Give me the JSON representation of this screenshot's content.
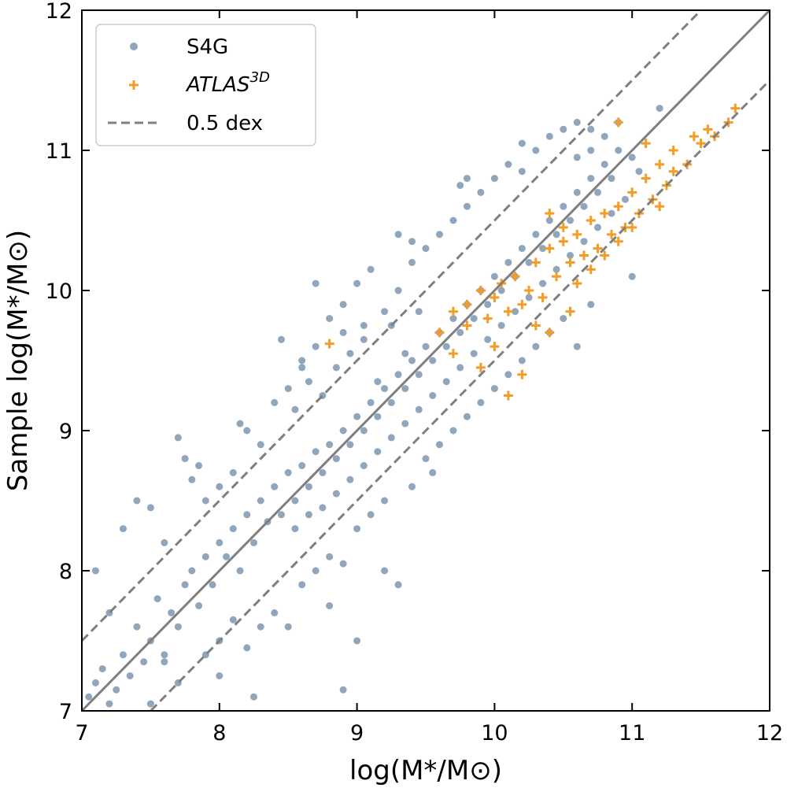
{
  "chart_data": {
    "type": "scatter",
    "xlabel": "log(M*/M⊙)",
    "ylabel": "Sample log(M*/M⊙)",
    "xlim": [
      7,
      12
    ],
    "ylim": [
      7,
      12
    ],
    "x_ticks": [
      "7",
      "8",
      "9",
      "10",
      "11",
      "12"
    ],
    "y_ticks": [
      "7",
      "8",
      "9",
      "10",
      "11",
      "12"
    ],
    "ticks_direction": "in",
    "grid": false,
    "legend_position": "top-left",
    "legend": {
      "s4g_label": "S4G",
      "atlas_label_base": "ATLAS",
      "atlas_label_sup": "3D",
      "dex_label": "0.5 dex"
    },
    "reference_lines": [
      {
        "name": "one-to-one",
        "style": "solid",
        "slope": 1,
        "offset": 0,
        "color": "#7f7f7f"
      },
      {
        "name": "plus-0.5-dex",
        "style": "dashed",
        "slope": 1,
        "offset": 0.5,
        "color": "#7f7f7f"
      },
      {
        "name": "minus-0.5-dex",
        "style": "dashed",
        "slope": 1,
        "offset": -0.5,
        "color": "#7f7f7f"
      }
    ],
    "series": [
      {
        "name": "S4G",
        "marker": "circle",
        "color": "#1f4e79",
        "points": [
          [
            7.05,
            7.1
          ],
          [
            7.1,
            7.2
          ],
          [
            7.15,
            7.3
          ],
          [
            7.2,
            7.05
          ],
          [
            7.25,
            7.15
          ],
          [
            7.3,
            7.4
          ],
          [
            7.35,
            7.25
          ],
          [
            7.4,
            7.6
          ],
          [
            7.45,
            7.35
          ],
          [
            7.5,
            7.5
          ],
          [
            7.55,
            7.8
          ],
          [
            7.6,
            7.4
          ],
          [
            7.65,
            7.7
          ],
          [
            7.7,
            7.6
          ],
          [
            7.75,
            7.9
          ],
          [
            7.8,
            8.0
          ],
          [
            7.85,
            7.75
          ],
          [
            7.9,
            8.1
          ],
          [
            7.95,
            7.9
          ],
          [
            8.0,
            8.2
          ],
          [
            8.05,
            8.1
          ],
          [
            8.1,
            8.3
          ],
          [
            8.15,
            8.0
          ],
          [
            8.2,
            8.4
          ],
          [
            8.25,
            8.2
          ],
          [
            8.3,
            8.5
          ],
          [
            8.35,
            8.35
          ],
          [
            8.4,
            8.6
          ],
          [
            8.45,
            8.4
          ],
          [
            8.5,
            8.7
          ],
          [
            8.55,
            8.5
          ],
          [
            8.6,
            8.75
          ],
          [
            8.65,
            8.6
          ],
          [
            8.7,
            8.85
          ],
          [
            8.75,
            8.7
          ],
          [
            8.8,
            8.9
          ],
          [
            8.85,
            8.8
          ],
          [
            8.9,
            9.0
          ],
          [
            8.95,
            8.9
          ],
          [
            9.0,
            9.1
          ],
          [
            9.05,
            9.0
          ],
          [
            9.1,
            9.2
          ],
          [
            9.15,
            9.1
          ],
          [
            9.2,
            9.3
          ],
          [
            9.25,
            9.2
          ],
          [
            9.3,
            9.4
          ],
          [
            9.35,
            9.3
          ],
          [
            9.4,
            9.5
          ],
          [
            9.45,
            9.4
          ],
          [
            9.5,
            9.6
          ],
          [
            9.55,
            9.5
          ],
          [
            9.6,
            9.7
          ],
          [
            9.65,
            9.6
          ],
          [
            9.7,
            9.8
          ],
          [
            9.75,
            9.7
          ],
          [
            9.8,
            9.9
          ],
          [
            9.85,
            9.8
          ],
          [
            9.9,
            10.0
          ],
          [
            9.95,
            9.9
          ],
          [
            10.0,
            10.1
          ],
          [
            10.05,
            10.0
          ],
          [
            10.1,
            10.2
          ],
          [
            10.15,
            10.1
          ],
          [
            10.2,
            10.3
          ],
          [
            10.25,
            10.2
          ],
          [
            10.3,
            10.4
          ],
          [
            10.35,
            10.3
          ],
          [
            10.4,
            10.5
          ],
          [
            10.45,
            10.4
          ],
          [
            10.5,
            10.6
          ],
          [
            10.55,
            10.5
          ],
          [
            10.6,
            10.7
          ],
          [
            10.65,
            10.6
          ],
          [
            10.7,
            10.8
          ],
          [
            10.75,
            10.7
          ],
          [
            10.8,
            10.9
          ],
          [
            10.85,
            10.8
          ],
          [
            10.9,
            11.0
          ],
          [
            11.0,
            10.95
          ],
          [
            11.2,
            11.3
          ],
          [
            7.1,
            8.0
          ],
          [
            7.2,
            7.7
          ],
          [
            7.3,
            8.3
          ],
          [
            7.4,
            8.5
          ],
          [
            7.5,
            8.45
          ],
          [
            7.6,
            8.2
          ],
          [
            7.7,
            8.95
          ],
          [
            7.75,
            8.8
          ],
          [
            7.8,
            8.65
          ],
          [
            7.9,
            8.5
          ],
          [
            8.0,
            8.6
          ],
          [
            8.1,
            8.7
          ],
          [
            8.2,
            9.0
          ],
          [
            8.3,
            8.9
          ],
          [
            8.4,
            9.2
          ],
          [
            8.5,
            9.3
          ],
          [
            8.6,
            9.5
          ],
          [
            8.7,
            9.6
          ],
          [
            8.8,
            9.8
          ],
          [
            8.9,
            9.9
          ],
          [
            9.0,
            10.05
          ],
          [
            9.1,
            10.15
          ],
          [
            9.2,
            9.85
          ],
          [
            9.3,
            10.0
          ],
          [
            9.4,
            10.2
          ],
          [
            9.5,
            10.3
          ],
          [
            9.6,
            10.4
          ],
          [
            9.7,
            10.5
          ],
          [
            9.8,
            10.6
          ],
          [
            9.9,
            10.7
          ],
          [
            10.0,
            10.8
          ],
          [
            10.1,
            10.9
          ],
          [
            10.2,
            11.05
          ],
          [
            10.3,
            11.0
          ],
          [
            10.4,
            11.1
          ],
          [
            10.5,
            11.15
          ],
          [
            10.6,
            11.2
          ],
          [
            10.7,
            11.15
          ],
          [
            9.75,
            10.75
          ],
          [
            9.3,
            10.4
          ],
          [
            7.5,
            7.05
          ],
          [
            7.7,
            7.2
          ],
          [
            7.9,
            7.4
          ],
          [
            8.0,
            7.5
          ],
          [
            8.2,
            7.45
          ],
          [
            8.3,
            7.6
          ],
          [
            8.4,
            7.7
          ],
          [
            8.6,
            7.9
          ],
          [
            8.7,
            8.0
          ],
          [
            8.8,
            8.1
          ],
          [
            8.9,
            8.05
          ],
          [
            9.0,
            8.3
          ],
          [
            9.1,
            8.4
          ],
          [
            9.2,
            8.5
          ],
          [
            9.3,
            7.9
          ],
          [
            9.4,
            8.6
          ],
          [
            9.5,
            8.8
          ],
          [
            9.6,
            8.9
          ],
          [
            9.7,
            9.0
          ],
          [
            9.8,
            9.1
          ],
          [
            9.9,
            9.2
          ],
          [
            10.0,
            9.3
          ],
          [
            10.1,
            9.4
          ],
          [
            10.2,
            9.5
          ],
          [
            10.3,
            9.6
          ],
          [
            10.4,
            9.7
          ],
          [
            10.5,
            9.8
          ],
          [
            10.6,
            9.6
          ],
          [
            10.7,
            9.9
          ],
          [
            11.0,
            10.1
          ],
          [
            8.0,
            7.25
          ],
          [
            8.1,
            7.65
          ],
          [
            8.25,
            7.1
          ],
          [
            8.5,
            7.6
          ],
          [
            8.9,
            7.15
          ],
          [
            9.0,
            7.5
          ],
          [
            7.6,
            7.35
          ],
          [
            8.8,
            7.75
          ],
          [
            9.2,
            8.0
          ],
          [
            9.55,
            8.7
          ],
          [
            8.7,
            10.05
          ],
          [
            8.9,
            9.7
          ],
          [
            9.8,
            10.8
          ],
          [
            10.2,
            10.85
          ],
          [
            9.05,
            9.75
          ],
          [
            9.4,
            10.35
          ],
          [
            8.6,
            9.45
          ],
          [
            8.15,
            9.05
          ],
          [
            7.85,
            8.75
          ],
          [
            8.45,
            9.65
          ],
          [
            8.55,
            9.15
          ],
          [
            8.65,
            9.35
          ],
          [
            8.75,
            9.25
          ],
          [
            8.85,
            9.45
          ],
          [
            8.95,
            9.55
          ],
          [
            9.05,
            9.65
          ],
          [
            9.15,
            9.35
          ],
          [
            9.25,
            9.75
          ],
          [
            9.35,
            9.55
          ],
          [
            9.45,
            9.85
          ],
          [
            8.55,
            8.3
          ],
          [
            8.65,
            8.4
          ],
          [
            8.75,
            8.45
          ],
          [
            8.85,
            8.55
          ],
          [
            8.95,
            8.65
          ],
          [
            9.05,
            8.75
          ],
          [
            9.15,
            8.85
          ],
          [
            9.25,
            8.95
          ],
          [
            9.35,
            9.05
          ],
          [
            9.45,
            9.15
          ],
          [
            9.55,
            9.25
          ],
          [
            9.65,
            9.35
          ],
          [
            9.75,
            9.45
          ],
          [
            9.85,
            9.55
          ],
          [
            9.95,
            9.65
          ],
          [
            10.05,
            9.75
          ],
          [
            10.15,
            9.85
          ],
          [
            10.25,
            9.95
          ],
          [
            10.35,
            10.05
          ],
          [
            10.45,
            10.15
          ],
          [
            10.55,
            10.25
          ],
          [
            10.65,
            10.35
          ],
          [
            10.75,
            10.45
          ],
          [
            10.85,
            10.55
          ],
          [
            10.95,
            10.65
          ],
          [
            10.6,
            10.95
          ],
          [
            10.7,
            11.0
          ],
          [
            10.8,
            11.1
          ],
          [
            10.9,
            11.2
          ],
          [
            11.05,
            10.85
          ]
        ]
      },
      {
        "name": "ATLAS3D",
        "marker": "plus",
        "color": "#f39c27",
        "points": [
          [
            8.8,
            9.62
          ],
          [
            10.1,
            9.25
          ],
          [
            10.2,
            9.4
          ],
          [
            9.6,
            9.7
          ],
          [
            9.7,
            9.55
          ],
          [
            9.8,
            9.9
          ],
          [
            9.9,
            10.0
          ],
          [
            9.95,
            9.8
          ],
          [
            10.0,
            9.95
          ],
          [
            10.05,
            10.05
          ],
          [
            10.1,
            9.85
          ],
          [
            10.15,
            10.1
          ],
          [
            10.2,
            9.9
          ],
          [
            10.25,
            10.0
          ],
          [
            10.3,
            10.2
          ],
          [
            10.35,
            9.95
          ],
          [
            10.4,
            10.3
          ],
          [
            10.45,
            10.1
          ],
          [
            10.5,
            10.35
          ],
          [
            10.55,
            10.2
          ],
          [
            10.6,
            10.4
          ],
          [
            10.65,
            10.25
          ],
          [
            10.7,
            10.5
          ],
          [
            10.75,
            10.3
          ],
          [
            10.8,
            10.55
          ],
          [
            10.85,
            10.4
          ],
          [
            10.9,
            10.6
          ],
          [
            10.95,
            10.45
          ],
          [
            11.0,
            10.7
          ],
          [
            11.05,
            10.55
          ],
          [
            11.1,
            10.8
          ],
          [
            11.15,
            10.65
          ],
          [
            11.2,
            10.9
          ],
          [
            11.25,
            10.75
          ],
          [
            11.3,
            11.0
          ],
          [
            11.4,
            10.9
          ],
          [
            11.45,
            11.1
          ],
          [
            11.5,
            11.05
          ],
          [
            11.55,
            11.15
          ],
          [
            11.6,
            11.1
          ],
          [
            11.7,
            11.2
          ],
          [
            11.75,
            11.3
          ],
          [
            11.3,
            10.85
          ],
          [
            11.2,
            10.6
          ],
          [
            11.1,
            11.05
          ],
          [
            10.9,
            11.2
          ],
          [
            10.3,
            9.75
          ],
          [
            10.4,
            9.7
          ],
          [
            10.0,
            9.6
          ],
          [
            9.9,
            9.45
          ],
          [
            9.8,
            9.75
          ],
          [
            9.7,
            9.85
          ],
          [
            10.6,
            10.05
          ],
          [
            10.7,
            10.15
          ],
          [
            10.8,
            10.25
          ],
          [
            10.5,
            10.45
          ],
          [
            10.4,
            10.55
          ],
          [
            10.9,
            10.35
          ],
          [
            11.0,
            10.45
          ],
          [
            10.55,
            9.85
          ]
        ]
      }
    ]
  }
}
